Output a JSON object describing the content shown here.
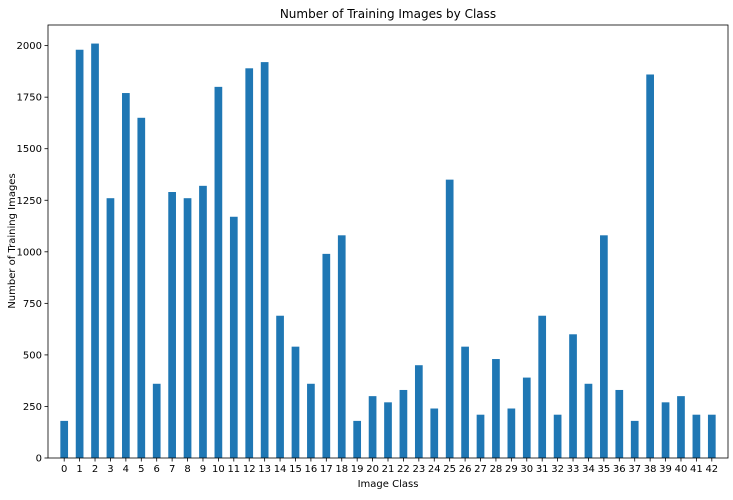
{
  "chart_data": {
    "type": "bar",
    "title": "Number of Training Images by Class",
    "xlabel": "Image Class",
    "ylabel": "Number of Training Images",
    "ylim": [
      0,
      2100
    ],
    "yticks": [
      0,
      250,
      500,
      750,
      1000,
      1250,
      1500,
      1750,
      2000
    ],
    "grid": false,
    "bar_color": "#1f77b4",
    "categories": [
      "0",
      "1",
      "2",
      "3",
      "4",
      "5",
      "6",
      "7",
      "8",
      "9",
      "10",
      "11",
      "12",
      "13",
      "14",
      "15",
      "16",
      "17",
      "18",
      "19",
      "20",
      "21",
      "22",
      "23",
      "24",
      "25",
      "26",
      "27",
      "28",
      "29",
      "30",
      "31",
      "32",
      "33",
      "34",
      "35",
      "36",
      "37",
      "38",
      "39",
      "40",
      "41",
      "42"
    ],
    "values": [
      180,
      1980,
      2010,
      1260,
      1770,
      1650,
      360,
      1290,
      1260,
      1320,
      1800,
      1170,
      1890,
      1920,
      690,
      540,
      360,
      990,
      1080,
      180,
      300,
      270,
      330,
      450,
      240,
      1350,
      540,
      210,
      480,
      240,
      390,
      690,
      210,
      600,
      360,
      1080,
      330,
      180,
      1860,
      270,
      300,
      210,
      210
    ]
  }
}
